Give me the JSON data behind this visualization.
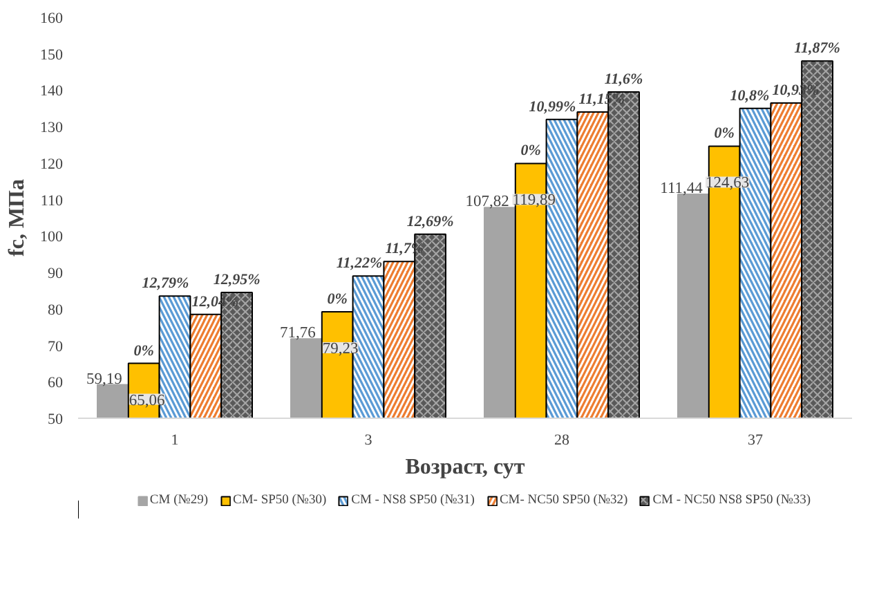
{
  "chart_data": {
    "type": "bar",
    "xlabel": "Возраст, сут",
    "ylabel": "fc, МПа",
    "categories": [
      "1",
      "3",
      "28",
      "37"
    ],
    "ylim": [
      50,
      160
    ],
    "yticks": [
      50,
      60,
      70,
      80,
      90,
      100,
      110,
      120,
      130,
      140,
      150,
      160
    ],
    "grid": false,
    "legend": "bottom",
    "series": [
      {
        "name": "CM (№29)",
        "color": "#a5a5a5",
        "values": [
          59.19,
          71.76,
          107.82,
          111.44
        ],
        "value_labels": [
          "59,19",
          "71,76",
          "107,82",
          "111,44"
        ]
      },
      {
        "name": "CM- SP50 (№30)",
        "color": "#ffc000",
        "values": [
          65.06,
          79.23,
          119.89,
          124.63
        ],
        "value_labels": [
          "65,06",
          "79,23",
          "119,89",
          "124,63"
        ]
      },
      {
        "name": "CM - NS8 SP50 (№31)",
        "color": "#5b9bd5",
        "values": [
          83.5,
          89,
          132,
          135
        ]
      },
      {
        "name": "CM- NC50 SP50 (№32)",
        "color": "#ed7d31",
        "values": [
          78.5,
          93,
          134,
          136.5
        ]
      },
      {
        "name": "CM - NC50 NS8 SP50 (№33)",
        "color": "#595959",
        "values": [
          84.5,
          100.5,
          139.5,
          148
        ]
      }
    ],
    "annotations": [
      "0%",
      "0%",
      "0%",
      "0%",
      "12,79%",
      "11,22%",
      "10,99%",
      "10,8%",
      "12,04%",
      "11,7%",
      "11,15%",
      "10,93%",
      "12,95%",
      "12,69%",
      "11,6%",
      "11,87%"
    ]
  }
}
